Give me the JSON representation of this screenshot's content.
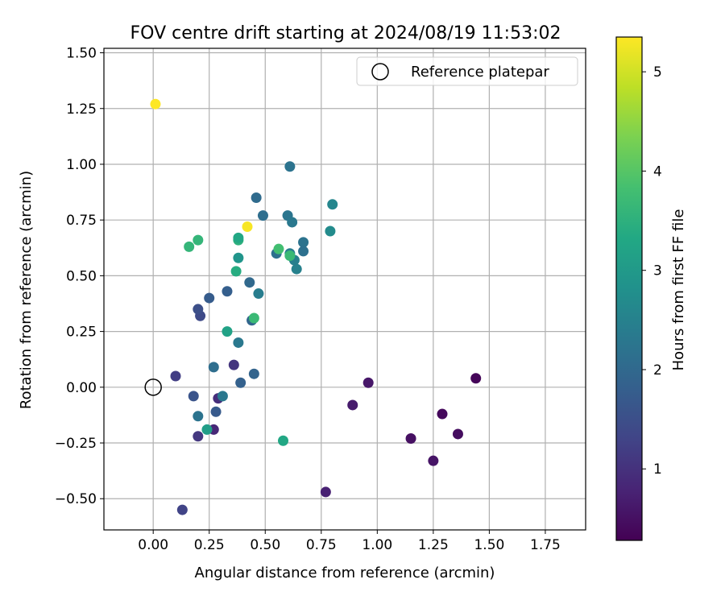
{
  "chart_data": {
    "type": "scatter",
    "title": "FOV centre drift starting at 2024/08/19 11:53:02",
    "xlabel": "Angular distance from reference (arcmin)",
    "ylabel": "Rotation from reference (arcmin)",
    "xlim": [
      -0.22,
      1.93
    ],
    "ylim": [
      -0.64,
      1.52
    ],
    "xticks": [
      0.0,
      0.25,
      0.5,
      0.75,
      1.0,
      1.25,
      1.5,
      1.75
    ],
    "xtick_labels": [
      "0.00",
      "0.25",
      "0.50",
      "0.75",
      "1.00",
      "1.25",
      "1.50",
      "1.75"
    ],
    "yticks": [
      -0.5,
      -0.25,
      0.0,
      0.25,
      0.5,
      0.75,
      1.0,
      1.25,
      1.5
    ],
    "ytick_labels": [
      "−0.50",
      "−0.25",
      "0.00",
      "0.25",
      "0.50",
      "0.75",
      "1.00",
      "1.25",
      "1.50"
    ],
    "grid": true,
    "legend": {
      "placement": "top-right",
      "entries": [
        "Reference platepar"
      ]
    },
    "reference_point": {
      "x": 0.0,
      "y": 0.0
    },
    "colorbar": {
      "label": "Hours from first FF file",
      "range": [
        0.28,
        5.35
      ],
      "ticks": [
        1,
        2,
        3,
        4,
        5
      ],
      "tick_labels": [
        "1",
        "2",
        "3",
        "4",
        "5"
      ],
      "colormap": "viridis"
    },
    "points": [
      {
        "x": 1.44,
        "y": 0.04,
        "c": 0.35
      },
      {
        "x": 1.29,
        "y": -0.12,
        "c": 0.4
      },
      {
        "x": 1.36,
        "y": -0.21,
        "c": 0.45
      },
      {
        "x": 1.15,
        "y": -0.23,
        "c": 0.5
      },
      {
        "x": 1.25,
        "y": -0.33,
        "c": 0.55
      },
      {
        "x": 0.96,
        "y": 0.02,
        "c": 0.6
      },
      {
        "x": 0.89,
        "y": -0.08,
        "c": 0.65
      },
      {
        "x": 0.77,
        "y": -0.47,
        "c": 0.75
      },
      {
        "x": 0.27,
        "y": -0.19,
        "c": 0.85
      },
      {
        "x": 0.29,
        "y": -0.05,
        "c": 0.95
      },
      {
        "x": 0.36,
        "y": 0.1,
        "c": 1.05
      },
      {
        "x": 0.2,
        "y": -0.22,
        "c": 1.1
      },
      {
        "x": 0.1,
        "y": 0.05,
        "c": 1.2
      },
      {
        "x": 0.13,
        "y": -0.55,
        "c": 1.3
      },
      {
        "x": 0.21,
        "y": 0.32,
        "c": 1.4
      },
      {
        "x": 0.2,
        "y": 0.35,
        "c": 1.5
      },
      {
        "x": 0.18,
        "y": -0.04,
        "c": 1.6
      },
      {
        "x": 0.28,
        "y": -0.11,
        "c": 1.7
      },
      {
        "x": 0.25,
        "y": 0.4,
        "c": 1.75
      },
      {
        "x": 0.33,
        "y": 0.43,
        "c": 1.8
      },
      {
        "x": 0.39,
        "y": 0.02,
        "c": 1.85
      },
      {
        "x": 0.45,
        "y": 0.06,
        "c": 1.9
      },
      {
        "x": 0.44,
        "y": 0.3,
        "c": 1.95
      },
      {
        "x": 0.43,
        "y": 0.47,
        "c": 2.0
      },
      {
        "x": 0.46,
        "y": 0.85,
        "c": 2.05
      },
      {
        "x": 0.49,
        "y": 0.77,
        "c": 2.1
      },
      {
        "x": 0.55,
        "y": 0.6,
        "c": 2.15
      },
      {
        "x": 0.61,
        "y": 0.99,
        "c": 2.2
      },
      {
        "x": 0.6,
        "y": 0.77,
        "c": 2.25
      },
      {
        "x": 0.62,
        "y": 0.74,
        "c": 2.3
      },
      {
        "x": 0.67,
        "y": 0.65,
        "c": 2.2
      },
      {
        "x": 0.67,
        "y": 0.61,
        "c": 2.15
      },
      {
        "x": 0.8,
        "y": 0.82,
        "c": 2.6
      },
      {
        "x": 0.79,
        "y": 0.7,
        "c": 2.7
      },
      {
        "x": 0.64,
        "y": 0.53,
        "c": 2.5
      },
      {
        "x": 0.63,
        "y": 0.57,
        "c": 2.45
      },
      {
        "x": 0.61,
        "y": 0.6,
        "c": 2.4
      },
      {
        "x": 0.47,
        "y": 0.42,
        "c": 2.4
      },
      {
        "x": 0.38,
        "y": 0.2,
        "c": 2.3
      },
      {
        "x": 0.31,
        "y": -0.04,
        "c": 2.3
      },
      {
        "x": 0.27,
        "y": 0.09,
        "c": 2.1
      },
      {
        "x": 0.2,
        "y": -0.13,
        "c": 2.2
      },
      {
        "x": 0.24,
        "y": -0.19,
        "c": 3.1
      },
      {
        "x": 0.33,
        "y": 0.25,
        "c": 3.2
      },
      {
        "x": 0.38,
        "y": 0.58,
        "c": 2.9
      },
      {
        "x": 0.37,
        "y": 0.52,
        "c": 3.4
      },
      {
        "x": 0.38,
        "y": 0.66,
        "c": 3.5
      },
      {
        "x": 0.38,
        "y": 0.67,
        "c": 3.3
      },
      {
        "x": 0.2,
        "y": 0.66,
        "c": 3.6
      },
      {
        "x": 0.16,
        "y": 0.63,
        "c": 3.6
      },
      {
        "x": 0.45,
        "y": 0.31,
        "c": 3.7
      },
      {
        "x": 0.56,
        "y": 0.62,
        "c": 3.8
      },
      {
        "x": 0.61,
        "y": 0.59,
        "c": 3.7
      },
      {
        "x": 0.58,
        "y": -0.24,
        "c": 3.3
      },
      {
        "x": 0.42,
        "y": 0.72,
        "c": 5.3
      },
      {
        "x": 0.01,
        "y": 1.27,
        "c": 5.35
      }
    ]
  }
}
